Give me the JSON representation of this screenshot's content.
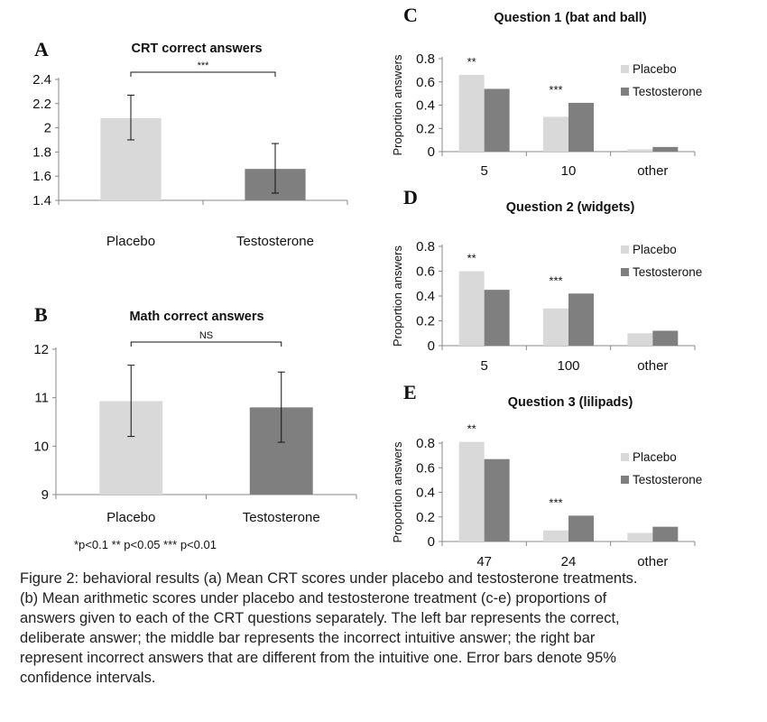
{
  "colors": {
    "placebo": "#d9d9d9",
    "testosterone": "#7f7f7f",
    "axis": "#888888"
  },
  "footnote": "*p<0.1       ** p<0.05   *** p<0.01",
  "caption": [
    "Figure 2: behavioral results (a) Mean CRT scores under placebo and testosterone treatments.",
    "(b) Mean arithmetic scores under placebo and testosterone treatment (c-e) proportions of",
    "answers given to each of the CRT questions separately. The left bar represents the correct,",
    "deliberate answer; the middle bar represents the incorrect intuitive answer; the right bar",
    "represent incorrect answers that are different from the intuitive one. Error bars denote 95%",
    "confidence intervals."
  ],
  "chart_data": [
    {
      "panel": "A",
      "type": "bar",
      "title": "CRT correct answers",
      "categories": [
        "Placebo",
        "Testosterone"
      ],
      "values": [
        2.08,
        1.66
      ],
      "error_low": [
        1.9,
        1.46
      ],
      "error_high": [
        2.27,
        1.87
      ],
      "ylim": [
        1.4,
        2.4
      ],
      "yticks": [
        "1.4",
        "1.6",
        "1.8",
        "2",
        "2.2",
        "2.4"
      ],
      "significance": "***",
      "grid": false
    },
    {
      "panel": "B",
      "type": "bar",
      "title": "Math correct answers",
      "categories": [
        "Placebo",
        "Testosterone"
      ],
      "values": [
        10.93,
        10.8
      ],
      "error_low": [
        10.2,
        10.08
      ],
      "error_high": [
        11.67,
        11.53
      ],
      "ylim": [
        9,
        12
      ],
      "yticks": [
        "9",
        "10",
        "11",
        "12"
      ],
      "significance": "NS",
      "grid": false
    },
    {
      "panel": "C",
      "type": "bar",
      "title": "Question 1 (bat and ball)",
      "ylabel": "Proportion answers",
      "categories": [
        "5",
        "10",
        "other"
      ],
      "series": [
        {
          "name": "Placebo",
          "values": [
            0.66,
            0.3,
            0.02
          ]
        },
        {
          "name": "Testosterone",
          "values": [
            0.54,
            0.42,
            0.04
          ]
        }
      ],
      "annotations": [
        "**",
        "***",
        ""
      ],
      "ylim": [
        0,
        0.8
      ],
      "yticks": [
        "0",
        "0.2",
        "0.4",
        "0.6",
        "0.8"
      ],
      "legend": "right"
    },
    {
      "panel": "D",
      "type": "bar",
      "title": "Question 2 (widgets)",
      "ylabel": "Proportion answers",
      "categories": [
        "5",
        "100",
        "other"
      ],
      "series": [
        {
          "name": "Placebo",
          "values": [
            0.6,
            0.3,
            0.1
          ]
        },
        {
          "name": "Testosterone",
          "values": [
            0.45,
            0.42,
            0.12
          ]
        }
      ],
      "annotations": [
        "**",
        "***",
        ""
      ],
      "ylim": [
        0,
        0.8
      ],
      "yticks": [
        "0",
        "0.2",
        "0.4",
        "0.6",
        "0.8"
      ],
      "legend": "right"
    },
    {
      "panel": "E",
      "type": "bar",
      "title": "Question 3 (lilipads)",
      "ylabel": "Proportion answers",
      "categories": [
        "47",
        "24",
        "other"
      ],
      "series": [
        {
          "name": "Placebo",
          "values": [
            0.81,
            0.09,
            0.07
          ]
        },
        {
          "name": "Testosterone",
          "values": [
            0.67,
            0.21,
            0.12
          ]
        }
      ],
      "annotations": [
        "**",
        "***",
        ""
      ],
      "ylim": [
        0,
        0.8
      ],
      "yticks": [
        "0",
        "0.2",
        "0.4",
        "0.6",
        "0.8"
      ],
      "legend": "right"
    }
  ]
}
